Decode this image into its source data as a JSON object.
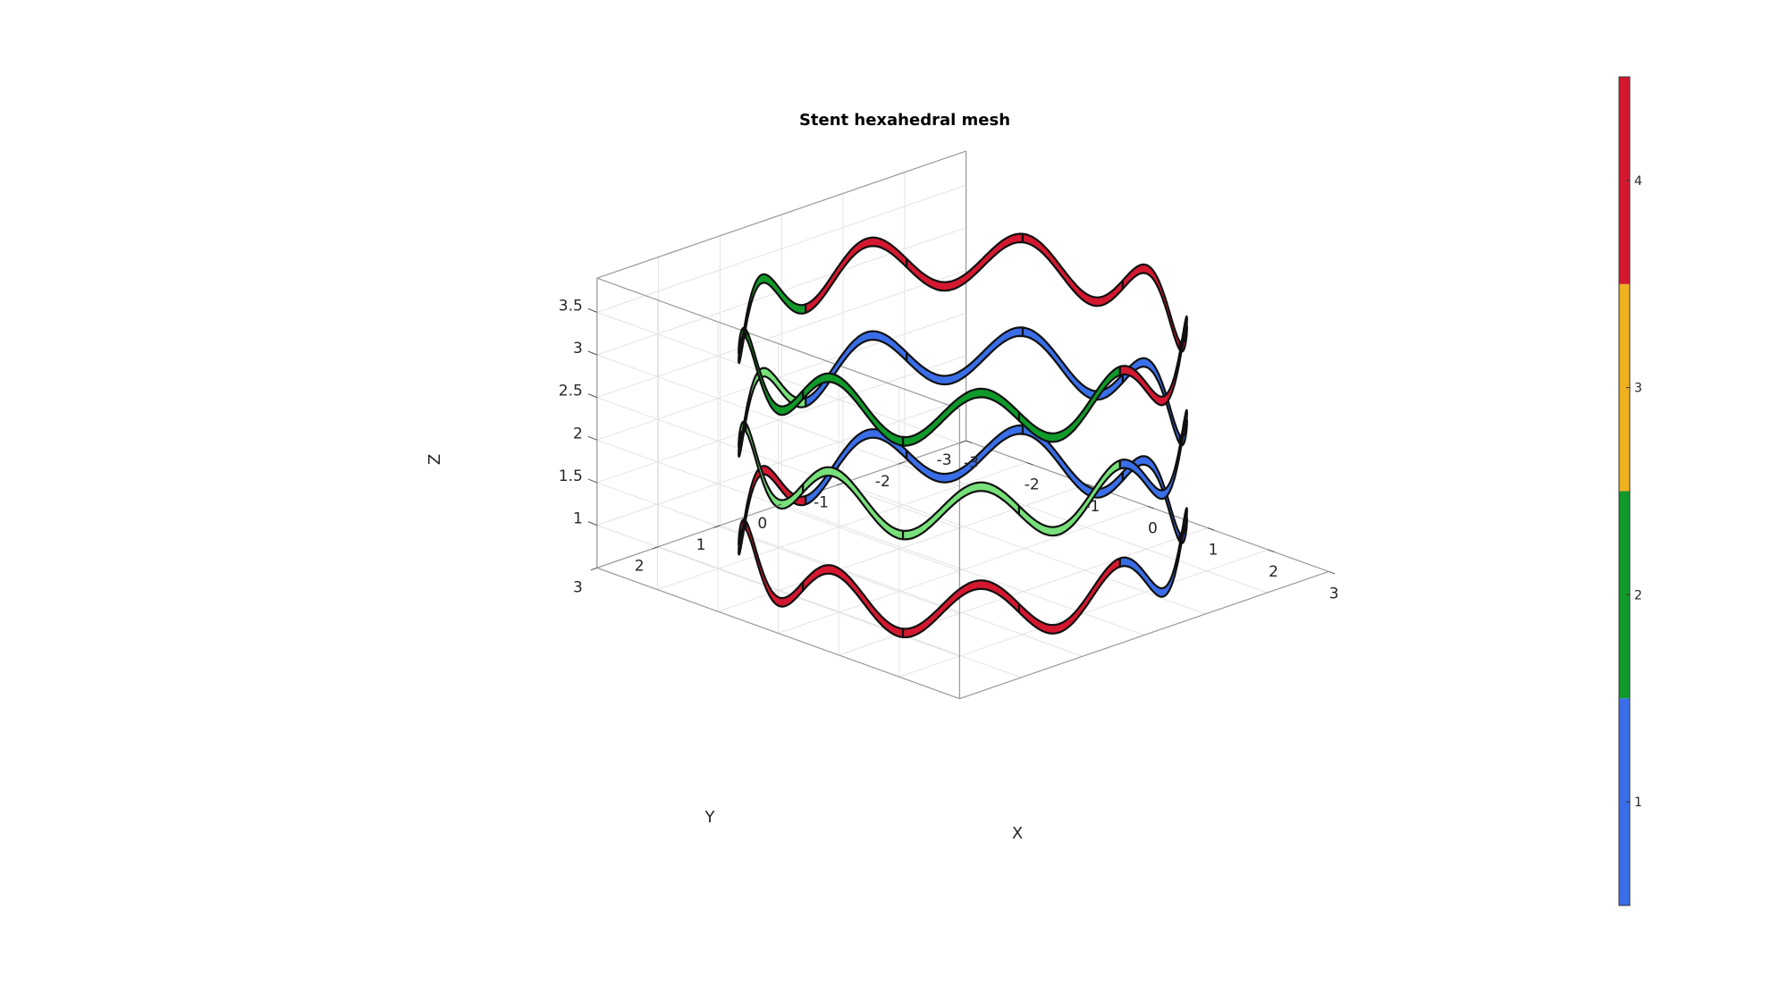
{
  "chart_data": {
    "type": "surface-3d",
    "title": "Stent hexahedral mesh",
    "xlabel": "X",
    "ylabel": "Y",
    "zlabel": "Z",
    "xlim": [
      -3,
      3
    ],
    "ylim": [
      -3,
      3
    ],
    "zlim": [
      0.5,
      3.9
    ],
    "x_ticks": [
      "-3",
      "-2",
      "-1",
      "0",
      "1",
      "2",
      "3"
    ],
    "y_ticks": [
      "-3",
      "-2",
      "-1",
      "0",
      "1",
      "2",
      "3"
    ],
    "z_ticks": [
      "1",
      "1.5",
      "2",
      "2.5",
      "3",
      "3.5"
    ],
    "grid": true,
    "rings": [
      {
        "center_z": 0.95,
        "amplitude": 0.3,
        "radius": 2.6,
        "waves": 9
      },
      {
        "center_z": 2.1,
        "amplitude": 0.3,
        "radius": 2.6,
        "waves": 9
      },
      {
        "center_z": 3.2,
        "amplitude": 0.3,
        "radius": 2.6,
        "waves": 9
      }
    ],
    "colorbar": {
      "ticks": [
        "1",
        "2",
        "3",
        "4"
      ],
      "range": [
        0.5,
        4.5
      ],
      "colors": [
        "#3a6ee8",
        "#0f9a2a",
        "#f0b020",
        "#d41830"
      ]
    }
  }
}
